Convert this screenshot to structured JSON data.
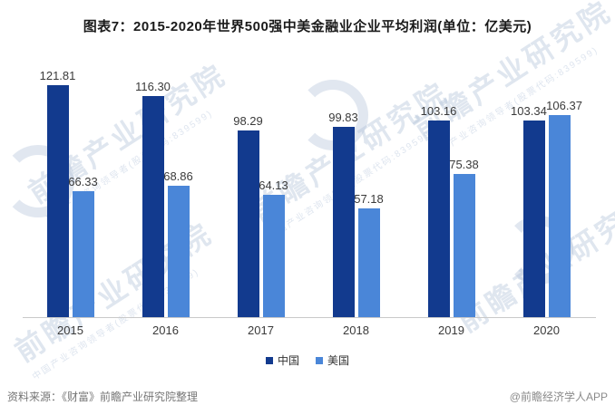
{
  "title": "图表7：2015-2020年世界500强中美金融业企业平均利润(单位：亿美元)",
  "chart_data": {
    "type": "bar",
    "title": "图表7：2015-2020年世界500强中美金融业企业平均利润(单位：亿美元)",
    "unit": "亿美元",
    "categories": [
      "2015",
      "2016",
      "2017",
      "2018",
      "2019",
      "2020"
    ],
    "series": [
      {
        "name": "中国",
        "color": "#123a8e",
        "values": [
          121.81,
          116.3,
          98.29,
          99.83,
          103.16,
          103.34
        ]
      },
      {
        "name": "美国",
        "color": "#4a86d8",
        "values": [
          66.33,
          68.86,
          64.13,
          57.18,
          75.38,
          106.37
        ]
      }
    ],
    "ylim": [
      0,
      128
    ],
    "grid": false,
    "legend_position": "bottom",
    "value_labels": true,
    "value_label_decimals": 2
  },
  "legend": {
    "items": [
      {
        "label": "中国",
        "color": "#123a8e"
      },
      {
        "label": "美国",
        "color": "#4a86d8"
      }
    ]
  },
  "footer": {
    "source": "资料来源：《财富》前瞻产业研究院整理",
    "credit": "@前瞻经济学人APP"
  },
  "watermark": {
    "text": "前瞻产业研究院",
    "subtext": "中国产业咨询领导者(股票代码:839599)",
    "color": "#b0c1d8"
  }
}
